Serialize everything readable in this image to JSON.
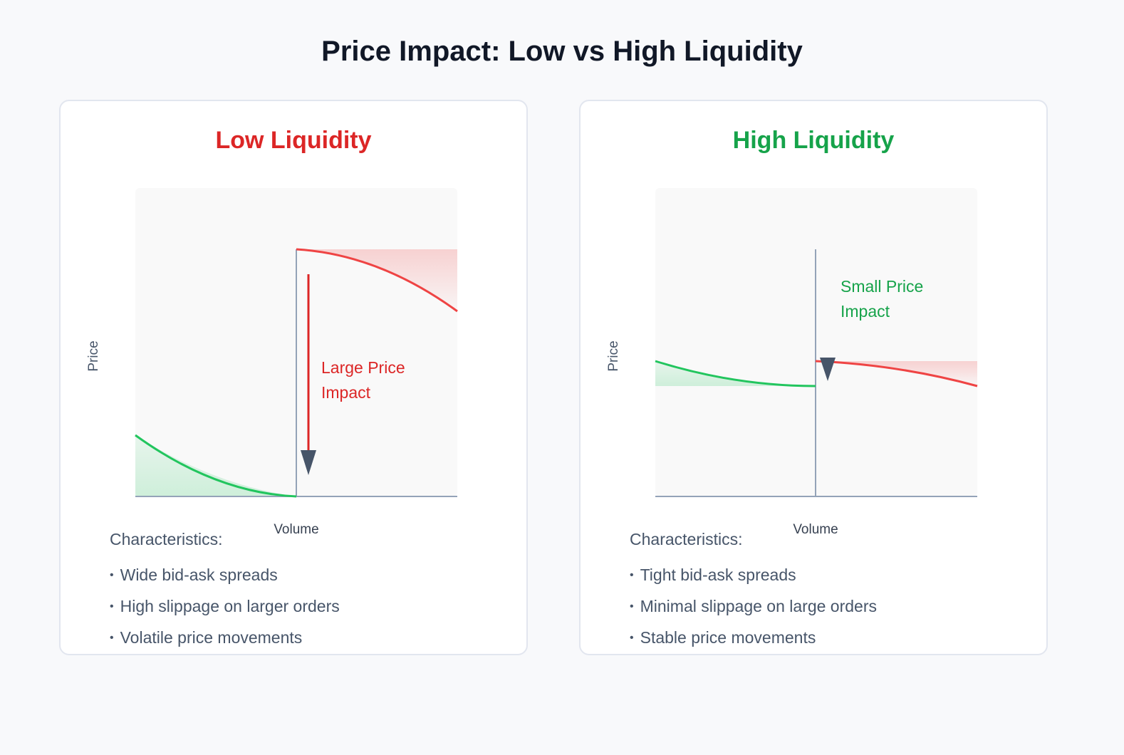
{
  "title": "Price Impact: Low vs High Liquidity",
  "colors": {
    "red": "#dc2626",
    "green": "#16a34a",
    "curve_red": "#ef4444",
    "curve_green": "#22c55e",
    "axis": "#94a3b8",
    "arrow": "#475569"
  },
  "panels": [
    {
      "heading": "Low Liquidity",
      "y_label": "Price",
      "x_label": "Volume",
      "annotation_line1": "Large Price",
      "annotation_line2": "Impact",
      "characteristics_title": "Characteristics:",
      "characteristics": [
        "Wide bid-ask spreads",
        "High slippage on larger orders",
        "Volatile price movements"
      ]
    },
    {
      "heading": "High Liquidity",
      "y_label": "Price",
      "x_label": "Volume",
      "annotation_line1": "Small Price",
      "annotation_line2": "Impact",
      "characteristics_title": "Characteristics:",
      "characteristics": [
        "Tight bid-ask spreads",
        "Minimal slippage on large orders",
        "Stable price movements"
      ]
    }
  ]
}
